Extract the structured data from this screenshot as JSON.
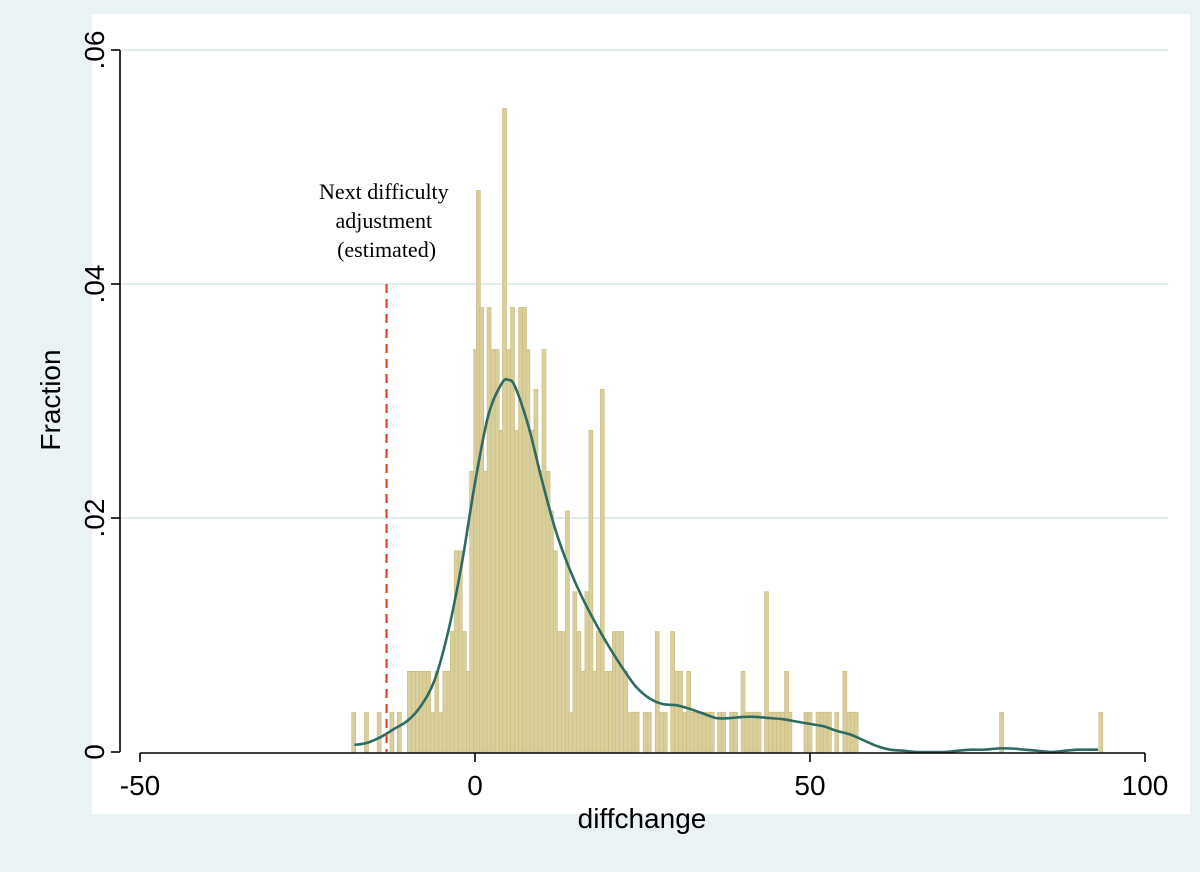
{
  "chart_data": {
    "type": "bar",
    "subtype": "histogram-with-density",
    "xlabel": "diffchange",
    "ylabel": "Fraction",
    "xlim": [
      -53,
      100
    ],
    "ylim": [
      0,
      0.06
    ],
    "x_ticks": [
      {
        "value": -50,
        "label": "-50"
      },
      {
        "value": 0,
        "label": "0"
      },
      {
        "value": 50,
        "label": "50"
      },
      {
        "value": 100,
        "label": "100"
      }
    ],
    "y_ticks": [
      {
        "value": 0,
        "label": "0"
      },
      {
        "value": 0.02,
        "label": ".02"
      },
      {
        "value": 0.04,
        "label": ".04"
      },
      {
        "value": 0.06,
        "label": ".06"
      }
    ],
    "grid": "horizontal",
    "bin_width": 0.6,
    "bins": [
      {
        "x": -18.1,
        "y": 0.0034
      },
      {
        "x": -16.2,
        "y": 0.0034
      },
      {
        "x": -14.3,
        "y": 0.0034
      },
      {
        "x": -12.4,
        "y": 0.0034
      },
      {
        "x": -11.3,
        "y": 0.0034
      },
      {
        "x": -9.8,
        "y": 0.0069
      },
      {
        "x": -9.2,
        "y": 0.0069
      },
      {
        "x": -8.6,
        "y": 0.0069
      },
      {
        "x": -8.0,
        "y": 0.0069
      },
      {
        "x": -7.5,
        "y": 0.0069
      },
      {
        "x": -6.9,
        "y": 0.0069
      },
      {
        "x": -6.3,
        "y": 0.0034
      },
      {
        "x": -5.7,
        "y": 0.0069
      },
      {
        "x": -5.1,
        "y": 0.0034
      },
      {
        "x": -4.5,
        "y": 0.0069
      },
      {
        "x": -3.9,
        "y": 0.0069
      },
      {
        "x": -3.4,
        "y": 0.0103
      },
      {
        "x": -2.8,
        "y": 0.0172
      },
      {
        "x": -2.2,
        "y": 0.0172
      },
      {
        "x": -1.6,
        "y": 0.0103
      },
      {
        "x": -1.0,
        "y": 0.0069
      },
      {
        "x": -0.5,
        "y": 0.024
      },
      {
        "x": 0.1,
        "y": 0.0344
      },
      {
        "x": 0.5,
        "y": 0.048
      },
      {
        "x": 1.0,
        "y": 0.038
      },
      {
        "x": 1.5,
        "y": 0.024
      },
      {
        "x": 2.1,
        "y": 0.038
      },
      {
        "x": 2.7,
        "y": 0.0344
      },
      {
        "x": 3.3,
        "y": 0.0344
      },
      {
        "x": 3.9,
        "y": 0.0275
      },
      {
        "x": 4.4,
        "y": 0.055
      },
      {
        "x": 5.0,
        "y": 0.0344
      },
      {
        "x": 5.6,
        "y": 0.038
      },
      {
        "x": 6.2,
        "y": 0.0275
      },
      {
        "x": 6.8,
        "y": 0.038
      },
      {
        "x": 7.4,
        "y": 0.038
      },
      {
        "x": 7.9,
        "y": 0.0344
      },
      {
        "x": 8.5,
        "y": 0.0275
      },
      {
        "x": 9.1,
        "y": 0.031
      },
      {
        "x": 9.7,
        "y": 0.024
      },
      {
        "x": 10.3,
        "y": 0.0344
      },
      {
        "x": 10.9,
        "y": 0.024
      },
      {
        "x": 11.4,
        "y": 0.0206
      },
      {
        "x": 12.0,
        "y": 0.0172
      },
      {
        "x": 12.6,
        "y": 0.0103
      },
      {
        "x": 13.2,
        "y": 0.0103
      },
      {
        "x": 13.8,
        "y": 0.0206
      },
      {
        "x": 14.3,
        "y": 0.0034
      },
      {
        "x": 14.9,
        "y": 0.0137
      },
      {
        "x": 15.5,
        "y": 0.0103
      },
      {
        "x": 16.1,
        "y": 0.0069
      },
      {
        "x": 16.7,
        "y": 0.0137
      },
      {
        "x": 17.3,
        "y": 0.0275
      },
      {
        "x": 17.8,
        "y": 0.0069
      },
      {
        "x": 18.4,
        "y": 0.0103
      },
      {
        "x": 19.0,
        "y": 0.031
      },
      {
        "x": 19.6,
        "y": 0.0069
      },
      {
        "x": 20.2,
        "y": 0.0069
      },
      {
        "x": 20.8,
        "y": 0.0103
      },
      {
        "x": 21.3,
        "y": 0.0103
      },
      {
        "x": 21.9,
        "y": 0.0103
      },
      {
        "x": 22.5,
        "y": 0.0069
      },
      {
        "x": 23.1,
        "y": 0.0034
      },
      {
        "x": 23.7,
        "y": 0.0034
      },
      {
        "x": 24.2,
        "y": 0.0034
      },
      {
        "x": 25.4,
        "y": 0.0034
      },
      {
        "x": 26.0,
        "y": 0.0034
      },
      {
        "x": 27.2,
        "y": 0.0103
      },
      {
        "x": 27.8,
        "y": 0.0034
      },
      {
        "x": 28.4,
        "y": 0.0034
      },
      {
        "x": 29.5,
        "y": 0.0103
      },
      {
        "x": 30.1,
        "y": 0.0069
      },
      {
        "x": 30.7,
        "y": 0.0069
      },
      {
        "x": 31.3,
        "y": 0.0034
      },
      {
        "x": 31.9,
        "y": 0.0069
      },
      {
        "x": 32.4,
        "y": 0.0034
      },
      {
        "x": 33.0,
        "y": 0.0034
      },
      {
        "x": 33.6,
        "y": 0.0034
      },
      {
        "x": 34.2,
        "y": 0.0034
      },
      {
        "x": 34.8,
        "y": 0.0034
      },
      {
        "x": 35.4,
        "y": 0.0034
      },
      {
        "x": 36.5,
        "y": 0.0034
      },
      {
        "x": 37.1,
        "y": 0.0034
      },
      {
        "x": 38.3,
        "y": 0.0034
      },
      {
        "x": 38.9,
        "y": 0.0034
      },
      {
        "x": 40.0,
        "y": 0.0069
      },
      {
        "x": 40.6,
        "y": 0.0034
      },
      {
        "x": 41.2,
        "y": 0.0034
      },
      {
        "x": 41.8,
        "y": 0.0034
      },
      {
        "x": 42.4,
        "y": 0.0034
      },
      {
        "x": 43.5,
        "y": 0.0137
      },
      {
        "x": 44.1,
        "y": 0.0034
      },
      {
        "x": 44.7,
        "y": 0.0034
      },
      {
        "x": 45.3,
        "y": 0.0034
      },
      {
        "x": 45.9,
        "y": 0.0034
      },
      {
        "x": 46.5,
        "y": 0.0069
      },
      {
        "x": 47.0,
        "y": 0.0034
      },
      {
        "x": 49.4,
        "y": 0.0034
      },
      {
        "x": 50.0,
        "y": 0.0034
      },
      {
        "x": 51.2,
        "y": 0.0034
      },
      {
        "x": 51.8,
        "y": 0.0034
      },
      {
        "x": 52.3,
        "y": 0.0034
      },
      {
        "x": 52.9,
        "y": 0.0034
      },
      {
        "x": 54.0,
        "y": 0.0034
      },
      {
        "x": 55.2,
        "y": 0.0069
      },
      {
        "x": 55.8,
        "y": 0.0034
      },
      {
        "x": 56.4,
        "y": 0.0034
      },
      {
        "x": 56.9,
        "y": 0.0034
      },
      {
        "x": 78.6,
        "y": 0.0034
      },
      {
        "x": 93.4,
        "y": 0.0034
      }
    ],
    "density": {
      "name": "kernel density",
      "color": "#2e6b62",
      "x": [
        -18,
        -16,
        -14,
        -12,
        -10,
        -8,
        -6,
        -4,
        -2,
        0,
        2,
        4,
        5,
        6,
        8,
        10,
        12,
        14,
        16,
        18,
        20,
        22,
        24,
        26,
        28,
        30,
        32,
        34,
        36,
        38,
        40,
        42,
        44,
        46,
        48,
        50,
        52,
        54,
        56,
        58,
        60,
        62,
        64,
        66,
        68,
        70,
        72,
        74,
        76,
        78,
        80,
        82,
        84,
        86,
        88,
        90,
        92,
        93
      ],
      "y": [
        0.0006,
        0.0008,
        0.0013,
        0.002,
        0.0027,
        0.004,
        0.0062,
        0.0103,
        0.016,
        0.023,
        0.0288,
        0.0315,
        0.0318,
        0.0312,
        0.0278,
        0.0232,
        0.019,
        0.0158,
        0.0132,
        0.011,
        0.009,
        0.0072,
        0.0056,
        0.0046,
        0.0041,
        0.004,
        0.0037,
        0.0033,
        0.0029,
        0.0029,
        0.003,
        0.003,
        0.0029,
        0.0028,
        0.0026,
        0.0024,
        0.0022,
        0.0018,
        0.0015,
        0.001,
        0.0005,
        0.0002,
        0.0001,
        0.0,
        0.0,
        0.0,
        0.0001,
        0.0002,
        0.0002,
        0.0003,
        0.0003,
        0.0002,
        0.0001,
        0.0,
        0.0001,
        0.0002,
        0.0002,
        0.0002
      ]
    },
    "reference_line": {
      "x": -13.2,
      "color": "#e8412a",
      "style": "dashed",
      "label_lines": [
        "Next difficulty",
        "adjustment",
        "(estimated)"
      ]
    },
    "colors": {
      "bar_fill": "#d9cf9c",
      "bar_stroke": "#c8bc7e",
      "grid": "#e1ecef",
      "page_background": "#eaf2f3",
      "plot_background": "#ffffff"
    }
  }
}
